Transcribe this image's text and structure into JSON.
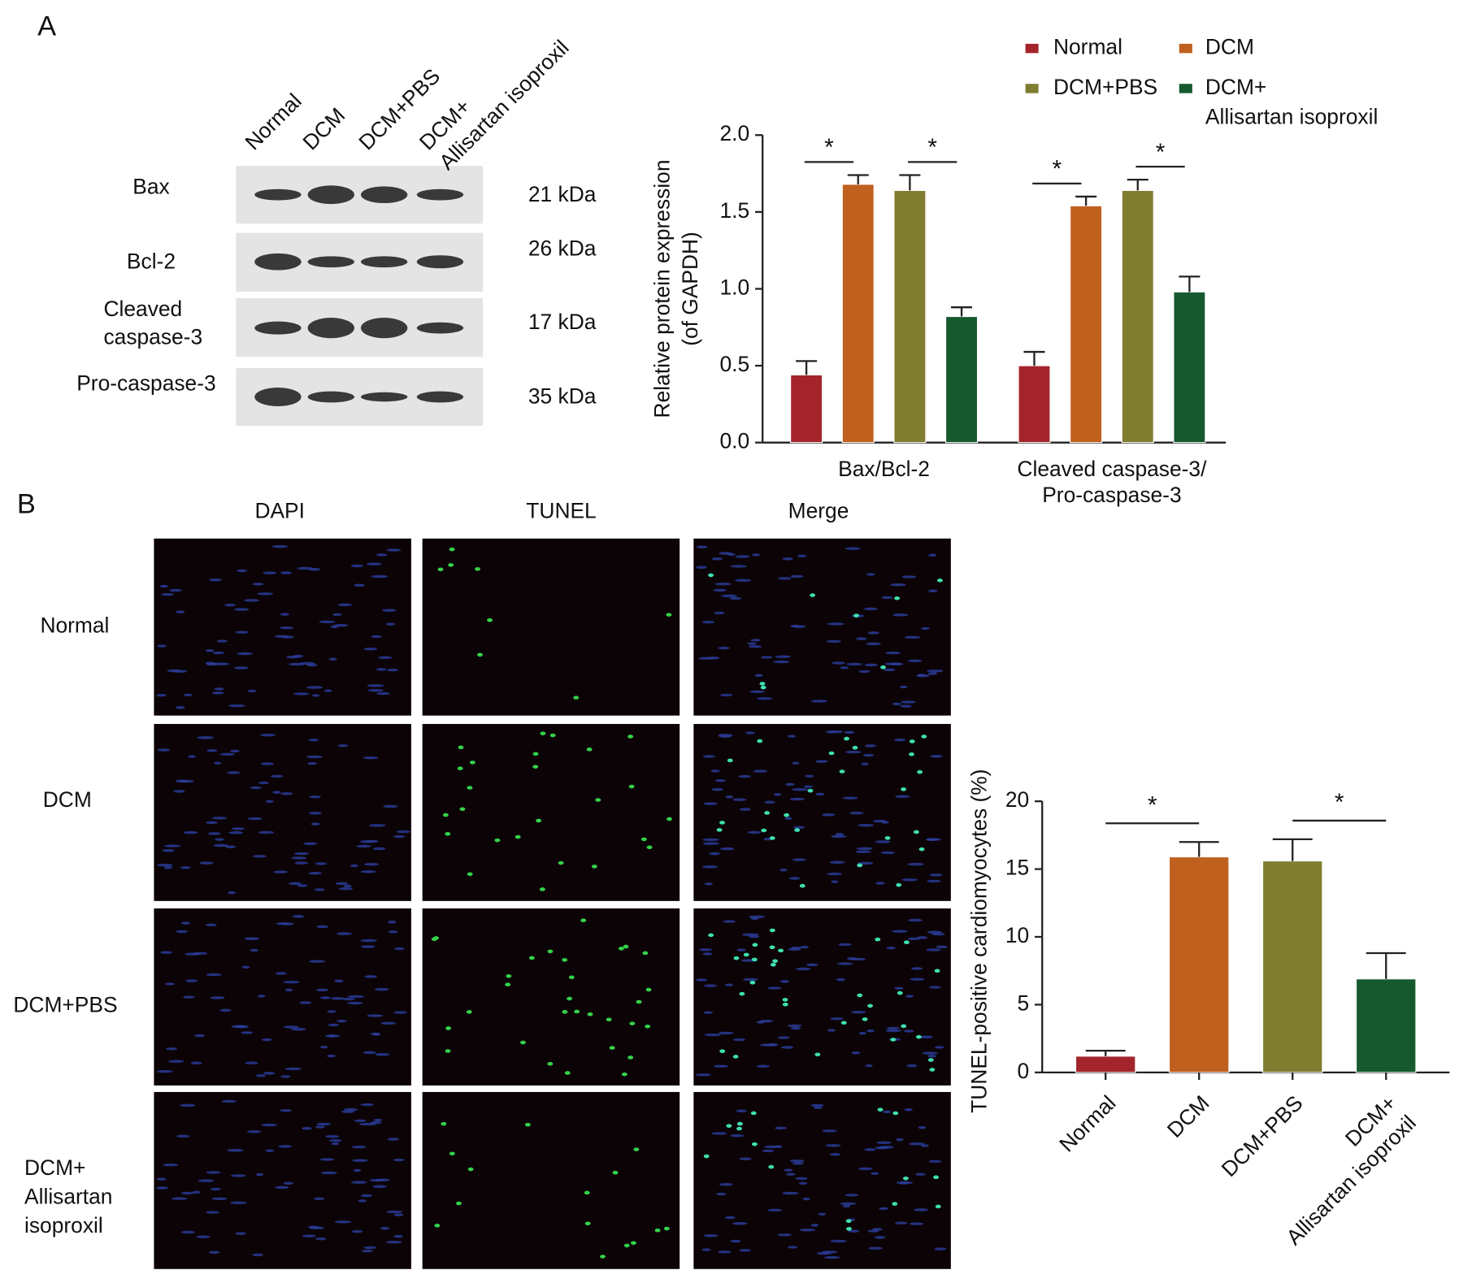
{
  "figure": {
    "panel_labels": [
      "A",
      "B"
    ],
    "blot": {
      "lanes": [
        "Normal",
        "DCM",
        "DCM+PBS",
        "DCM+\nAllisartan isoproxil"
      ],
      "proteins": [
        "Bax",
        "Bcl-2",
        "Cleaved\ncaspase-3",
        "Pro-caspase-3"
      ],
      "sizes": [
        "21 kDa",
        "26 kDa",
        "17 kDa",
        "35 kDa"
      ]
    },
    "images": {
      "columns": [
        "DAPI",
        "TUNEL",
        "Merge"
      ],
      "rows": [
        "Normal",
        "DCM",
        "DCM+PBS",
        "DCM+\nAllisartan\nisoproxil"
      ]
    }
  },
  "chart_data": [
    {
      "type": "grouped-bar",
      "ylabel": "Relative protein expression\n(of GAPDH)",
      "categories": [
        "Bax/Bcl-2",
        "Cleaved caspase-3/\nPro-caspase-3"
      ],
      "series": [
        {
          "name": "Normal",
          "color": "#a3252b",
          "values": [
            0.44,
            0.5
          ],
          "errors": [
            0.09,
            0.09
          ]
        },
        {
          "name": "DCM",
          "color": "#c0601e",
          "values": [
            1.68,
            1.54
          ],
          "errors": [
            0.06,
            0.06
          ]
        },
        {
          "name": "DCM+PBS",
          "color": "#807d31",
          "values": [
            1.64,
            1.64
          ],
          "errors": [
            0.1,
            0.07
          ]
        },
        {
          "name": "DCM+\nAllisartan isoproxil",
          "color": "#17592f",
          "values": [
            0.82,
            0.98
          ],
          "errors": [
            0.06,
            0.1
          ]
        }
      ],
      "ylim": [
        0,
        2
      ],
      "yticks": [
        {
          "value": 0,
          "label": "0.0"
        },
        0.5,
        {
          "value": 1,
          "label": "1.0"
        },
        1.5,
        {
          "value": 2,
          "label": "2.0"
        }
      ],
      "legend": "top",
      "significance": [
        {
          "label": "*",
          "category": 0,
          "series": [
            0,
            1
          ]
        },
        {
          "label": "*",
          "category": 0,
          "series": [
            2,
            3
          ]
        },
        {
          "label": "*",
          "category": 1,
          "series": [
            0,
            1
          ]
        },
        {
          "label": "*",
          "category": 1,
          "series": [
            2,
            3
          ]
        }
      ]
    },
    {
      "type": "bar",
      "ylabel": "TUNEL-positive cardiomyocytes (%)",
      "categories": [
        "Normal",
        "DCM",
        "DCM+PBS",
        "DCM+\nAllisartan isoproxil"
      ],
      "values": [
        1.2,
        15.9,
        15.6,
        6.9
      ],
      "errors": [
        0.4,
        1.1,
        1.6,
        1.9
      ],
      "colors": [
        "#a3252b",
        "#c0601e",
        "#807d31",
        "#17592f"
      ],
      "ylim": [
        0,
        20
      ],
      "yticks": [
        0,
        5,
        10,
        15,
        20
      ],
      "significance": [
        {
          "label": "*",
          "bars": [
            0,
            1
          ]
        },
        {
          "label": "*",
          "bars": [
            2,
            3
          ]
        }
      ]
    }
  ]
}
